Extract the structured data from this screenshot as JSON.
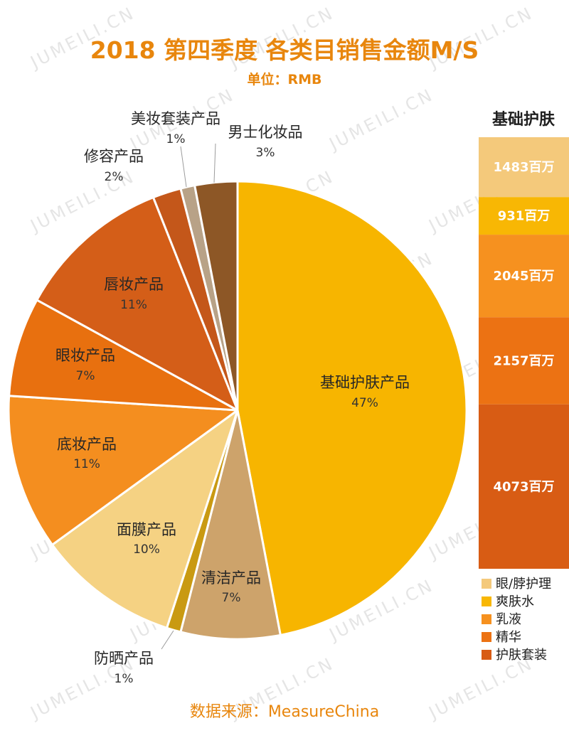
{
  "chart_data": [
    {
      "type": "pie",
      "title": "2018 第四季度 各类目销售金额M/S",
      "subtitle": "单位：RMB",
      "slices": [
        {
          "label": "基础护肤产品",
          "value": 47,
          "value_label": "47%",
          "color": "#F7B500"
        },
        {
          "label": "清洁产品",
          "value": 7,
          "value_label": "7%",
          "color": "#CDA36B"
        },
        {
          "label": "防晒产品",
          "value": 1,
          "value_label": "1%",
          "color": "#C99A12"
        },
        {
          "label": "面膜产品",
          "value": 10,
          "value_label": "10%",
          "color": "#F5D283"
        },
        {
          "label": "底妆产品",
          "value": 11,
          "value_label": "11%",
          "color": "#F48E1F"
        },
        {
          "label": "眼妆产品",
          "value": 7,
          "value_label": "7%",
          "color": "#E8700F"
        },
        {
          "label": "唇妆产品",
          "value": 11,
          "value_label": "11%",
          "color": "#D45E18"
        },
        {
          "label": "修容产品",
          "value": 2,
          "value_label": "2%",
          "color": "#C4571A"
        },
        {
          "label": "美妆套装产品",
          "value": 1,
          "value_label": "1%",
          "color": "#B8A287"
        },
        {
          "label": "男士化妆品",
          "value": 3,
          "value_label": "3%",
          "color": "#8D5726"
        }
      ]
    },
    {
      "type": "bar",
      "stacked": true,
      "title": "基础护肤",
      "legend": "bottom",
      "series": [
        {
          "name": "眼/脖护理",
          "values": [
            1483
          ],
          "value_label": "1483百万",
          "color": "#F4C97B"
        },
        {
          "name": "爽肤水",
          "values": [
            931
          ],
          "value_label": "931百万",
          "color": "#F8B704"
        },
        {
          "name": "乳液",
          "values": [
            2045
          ],
          "value_label": "2045百万",
          "color": "#F6911F"
        },
        {
          "name": "精华",
          "values": [
            2157
          ],
          "value_label": "2157百万",
          "color": "#EC7213"
        },
        {
          "name": "护肤套装",
          "values": [
            4073
          ],
          "value_label": "4073百万",
          "color": "#D85C14"
        }
      ]
    }
  ],
  "source": "数据来源：MeasureChina",
  "accent_color": "#E8860D",
  "watermark": "JUMEILI.CN"
}
